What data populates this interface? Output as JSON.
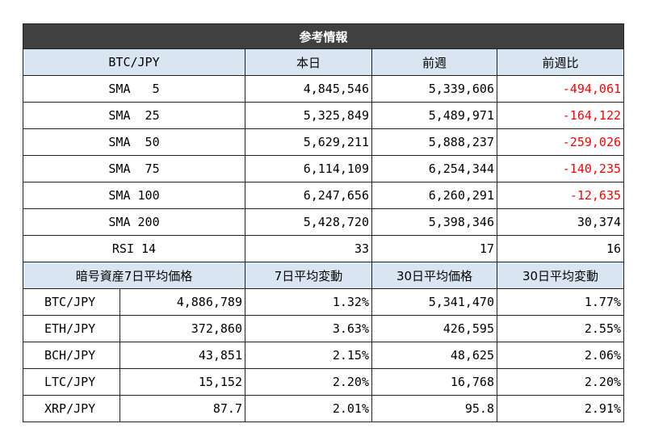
{
  "title": "参考情報",
  "table1": {
    "headers": [
      "BTC/JPY",
      "本日",
      "前週",
      "前週比"
    ],
    "rows": [
      {
        "label": "SMA   5",
        "today": "4,845,546",
        "last_week": "5,339,606",
        "diff": "-494,061",
        "negative": true
      },
      {
        "label": "SMA  25",
        "today": "5,325,849",
        "last_week": "5,489,971",
        "diff": "-164,122",
        "negative": true
      },
      {
        "label": "SMA  50",
        "today": "5,629,211",
        "last_week": "5,888,237",
        "diff": "-259,026",
        "negative": true
      },
      {
        "label": "SMA  75",
        "today": "6,114,109",
        "last_week": "6,254,344",
        "diff": "-140,235",
        "negative": true
      },
      {
        "label": "SMA 100",
        "today": "6,247,656",
        "last_week": "6,260,291",
        "diff": "-12,635",
        "negative": true
      },
      {
        "label": "SMA 200",
        "today": "5,428,720",
        "last_week": "5,398,346",
        "diff": "30,374",
        "negative": false
      },
      {
        "label": "RSI 14",
        "today": "33",
        "last_week": "17",
        "diff": "16",
        "negative": false
      }
    ]
  },
  "table2": {
    "headers": [
      "暗号資産",
      "7日平均価格",
      "7日平均変動",
      "30日平均価格",
      "30日平均変動"
    ],
    "rows": [
      {
        "pair": "BTC/JPY",
        "avg7": "4,886,789",
        "chg7": "1.32%",
        "avg30": "5,341,470",
        "chg30": "1.77%"
      },
      {
        "pair": "ETH/JPY",
        "avg7": "372,860",
        "chg7": "3.63%",
        "avg30": "426,595",
        "chg30": "2.55%"
      },
      {
        "pair": "BCH/JPY",
        "avg7": "43,851",
        "chg7": "2.15%",
        "avg30": "48,625",
        "chg30": "2.06%"
      },
      {
        "pair": "LTC/JPY",
        "avg7": "15,152",
        "chg7": "2.20%",
        "avg30": "16,768",
        "chg30": "2.20%"
      },
      {
        "pair": "XRP/JPY",
        "avg7": "87.7",
        "chg7": "2.01%",
        "avg30": "95.8",
        "chg30": "2.91%"
      }
    ]
  },
  "colors": {
    "title_bg": "#404040",
    "header_bg": "#d9e6f2",
    "negative": "#ff0000"
  }
}
